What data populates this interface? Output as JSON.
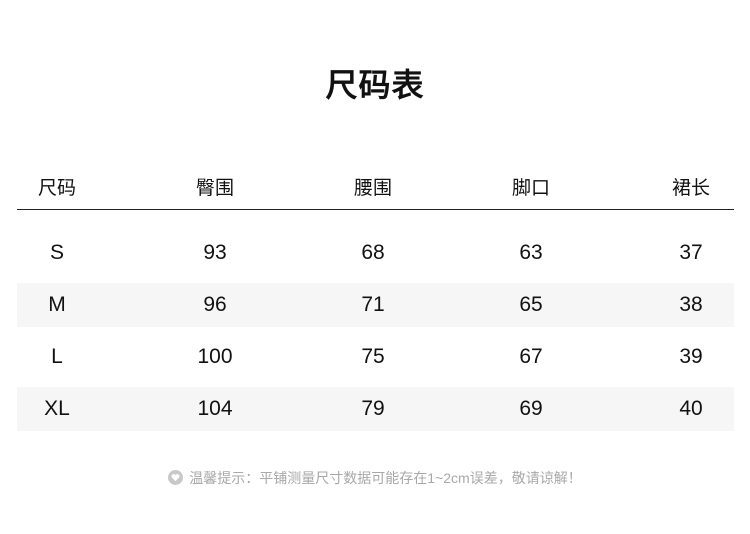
{
  "title": "尺码表",
  "table": {
    "headers": [
      "尺码",
      "臀围",
      "腰围",
      "脚口",
      "裙长"
    ],
    "rows": [
      [
        "S",
        "93",
        "68",
        "63",
        "37"
      ],
      [
        "M",
        "96",
        "71",
        "65",
        "38"
      ],
      [
        "L",
        "100",
        "75",
        "67",
        "39"
      ],
      [
        "XL",
        "104",
        "79",
        "69",
        "40"
      ]
    ]
  },
  "note": {
    "icon": "heart-icon",
    "text": "温馨提示：平铺测量尺寸数据可能存在1~2cm误差，敬请谅解！"
  },
  "colors": {
    "stripe": "#f6f6f6",
    "note": "#a8a8a8"
  }
}
